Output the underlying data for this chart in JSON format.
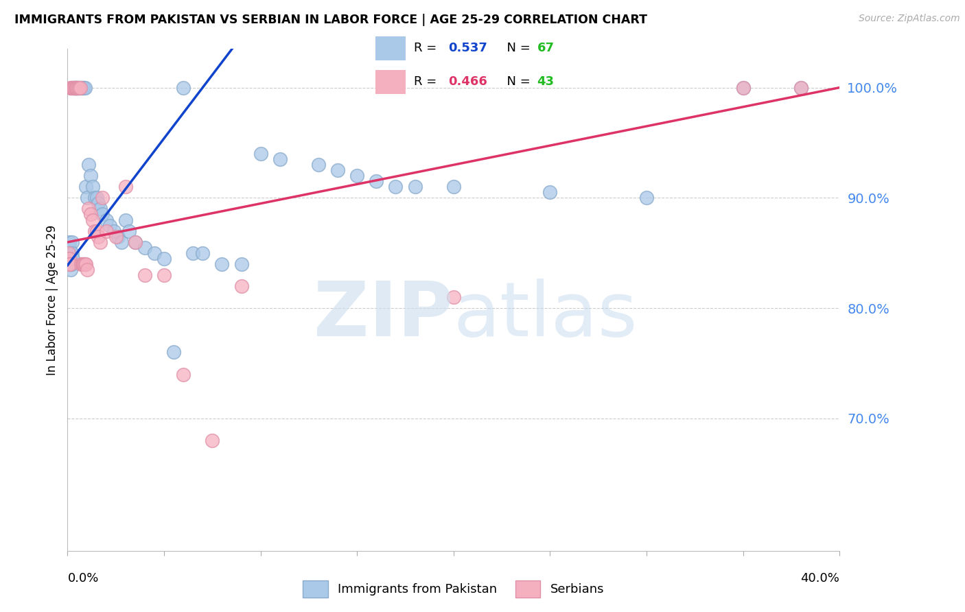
{
  "title": "IMMIGRANTS FROM PAKISTAN VS SERBIAN IN LABOR FORCE | AGE 25-29 CORRELATION CHART",
  "source": "Source: ZipAtlas.com",
  "ylabel": "In Labor Force | Age 25-29",
  "xlim": [
    0.0,
    40.0
  ],
  "ylim": [
    58.0,
    103.5
  ],
  "ytick_vals": [
    70.0,
    80.0,
    90.0,
    100.0
  ],
  "pakistan_R": 0.537,
  "pakistan_N": 67,
  "serbian_R": 0.466,
  "serbian_N": 43,
  "pakistan_color": "#aac8e8",
  "pakistan_edge": "#88aacc",
  "serbian_color": "#f5b0c0",
  "serbian_edge": "#e090a8",
  "pakistan_line_color": "#1144cc",
  "serbian_line_color": "#dd3366",
  "right_tick_color": "#4488ee",
  "background_color": "#ffffff",
  "grid_color": "#cccccc",
  "pakistan_x": [
    0.05,
    0.08,
    0.1,
    0.12,
    0.15,
    0.18,
    0.2,
    0.22,
    0.25,
    0.28,
    0.3,
    0.32,
    0.35,
    0.38,
    0.4,
    0.42,
    0.45,
    0.48,
    0.5,
    0.55,
    0.6,
    0.65,
    0.7,
    0.75,
    0.8,
    0.85,
    0.9,
    0.95,
    1.0,
    1.1,
    1.2,
    1.3,
    1.4,
    1.5,
    1.6,
    1.7,
    1.8,
    2.0,
    2.2,
    2.4,
    2.6,
    2.8,
    3.0,
    3.2,
    3.5,
    4.0,
    4.5,
    5.0,
    5.5,
    6.0,
    6.5,
    7.0,
    8.0,
    9.0,
    10.0,
    11.0,
    13.0,
    14.0,
    15.0,
    16.0,
    17.0,
    18.0,
    20.0,
    25.0,
    30.0,
    35.0,
    38.0
  ],
  "pakistan_y": [
    85.0,
    85.5,
    86.0,
    84.0,
    83.5,
    85.0,
    84.0,
    86.0,
    85.0,
    84.5,
    100.0,
    100.0,
    100.0,
    100.0,
    100.0,
    100.0,
    100.0,
    100.0,
    100.0,
    100.0,
    100.0,
    100.0,
    100.0,
    100.0,
    100.0,
    100.0,
    100.0,
    91.0,
    90.0,
    93.0,
    92.0,
    91.0,
    90.0,
    90.0,
    89.5,
    89.0,
    88.5,
    88.0,
    87.5,
    87.0,
    86.5,
    86.0,
    88.0,
    87.0,
    86.0,
    85.5,
    85.0,
    84.5,
    76.0,
    100.0,
    85.0,
    85.0,
    84.0,
    84.0,
    94.0,
    93.5,
    93.0,
    92.5,
    92.0,
    91.5,
    91.0,
    91.0,
    91.0,
    90.5,
    90.0,
    100.0,
    100.0
  ],
  "serbian_x": [
    0.05,
    0.08,
    0.1,
    0.12,
    0.15,
    0.18,
    0.2,
    0.25,
    0.3,
    0.35,
    0.4,
    0.45,
    0.5,
    0.55,
    0.6,
    0.65,
    0.7,
    0.75,
    0.8,
    0.85,
    0.9,
    0.95,
    1.0,
    1.1,
    1.2,
    1.3,
    1.4,
    1.5,
    1.6,
    1.7,
    1.8,
    2.0,
    2.5,
    3.0,
    3.5,
    4.0,
    5.0,
    6.0,
    7.5,
    9.0,
    20.0,
    35.0,
    38.0
  ],
  "serbian_y": [
    85.0,
    84.5,
    84.0,
    84.0,
    100.0,
    100.0,
    100.0,
    100.0,
    100.0,
    100.0,
    100.0,
    100.0,
    100.0,
    100.0,
    100.0,
    100.0,
    84.0,
    84.0,
    84.0,
    84.0,
    84.0,
    84.0,
    83.5,
    89.0,
    88.5,
    88.0,
    87.0,
    87.0,
    86.5,
    86.0,
    90.0,
    87.0,
    86.5,
    91.0,
    86.0,
    83.0,
    83.0,
    74.0,
    68.0,
    82.0,
    81.0,
    100.0,
    100.0
  ]
}
